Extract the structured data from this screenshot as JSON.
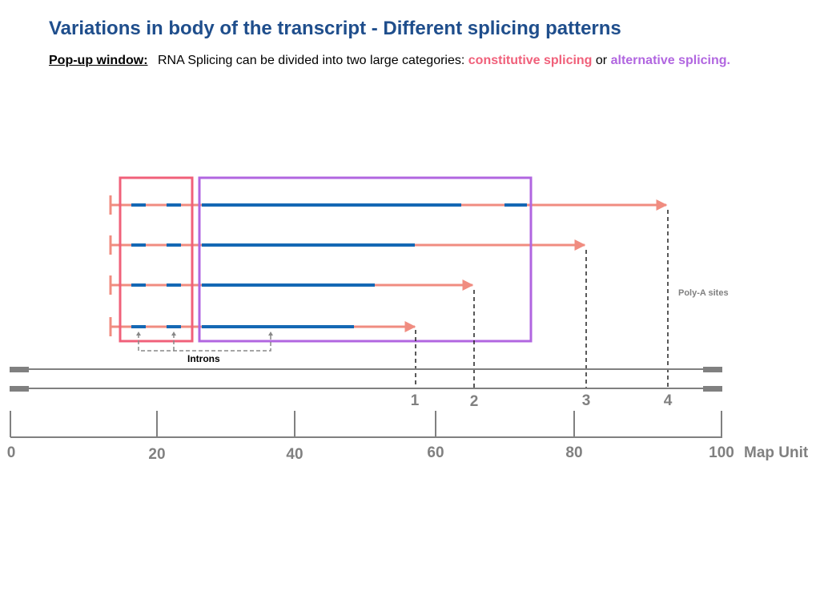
{
  "header": {
    "title": "Variations in body of the transcript - Different splicing patterns",
    "lead": "Pop-up window:",
    "text_before": "RNA Splicing can be divided into two large categories:",
    "constitutive": "constitutive splicing",
    "or_word": "or",
    "alternative": "alternative splicing."
  },
  "colors": {
    "exon": "#1468b4",
    "intron": "#f08c80",
    "constitutive_box": "#f0607a",
    "alternative_box": "#b166e0",
    "axis": "#808080"
  },
  "diagram": {
    "polya_label": "Poly-A sites",
    "introns_label": "Introns",
    "polya_sites": [
      "1",
      "2",
      "3",
      "4"
    ],
    "axis_ticks": [
      "0",
      "20",
      "40",
      "60",
      "80",
      "100"
    ],
    "axis_unit": "Map Unit"
  }
}
